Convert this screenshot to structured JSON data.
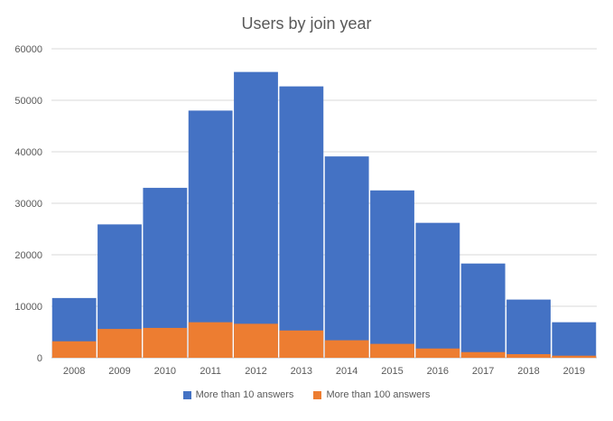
{
  "chart_data": {
    "type": "bar",
    "title": "Users by join year",
    "xlabel": "",
    "ylabel": "",
    "categories": [
      "2008",
      "2009",
      "2010",
      "2011",
      "2012",
      "2013",
      "2014",
      "2015",
      "2016",
      "2017",
      "2018",
      "2019"
    ],
    "series": [
      {
        "name": "More than 10 answers",
        "color": "#4472C4",
        "values": [
          11600,
          25900,
          33000,
          48000,
          55500,
          52700,
          39100,
          32500,
          26200,
          18300,
          11300,
          6900
        ]
      },
      {
        "name": "More than 100 answers",
        "color": "#ED7D31",
        "values": [
          3200,
          5600,
          5800,
          6900,
          6600,
          5300,
          3400,
          2700,
          1800,
          1100,
          700,
          400
        ]
      }
    ],
    "ylim": [
      0,
      60000
    ],
    "yticks": [
      0,
      10000,
      20000,
      30000,
      40000,
      50000,
      60000
    ],
    "grid": true,
    "legend_position": "bottom"
  }
}
